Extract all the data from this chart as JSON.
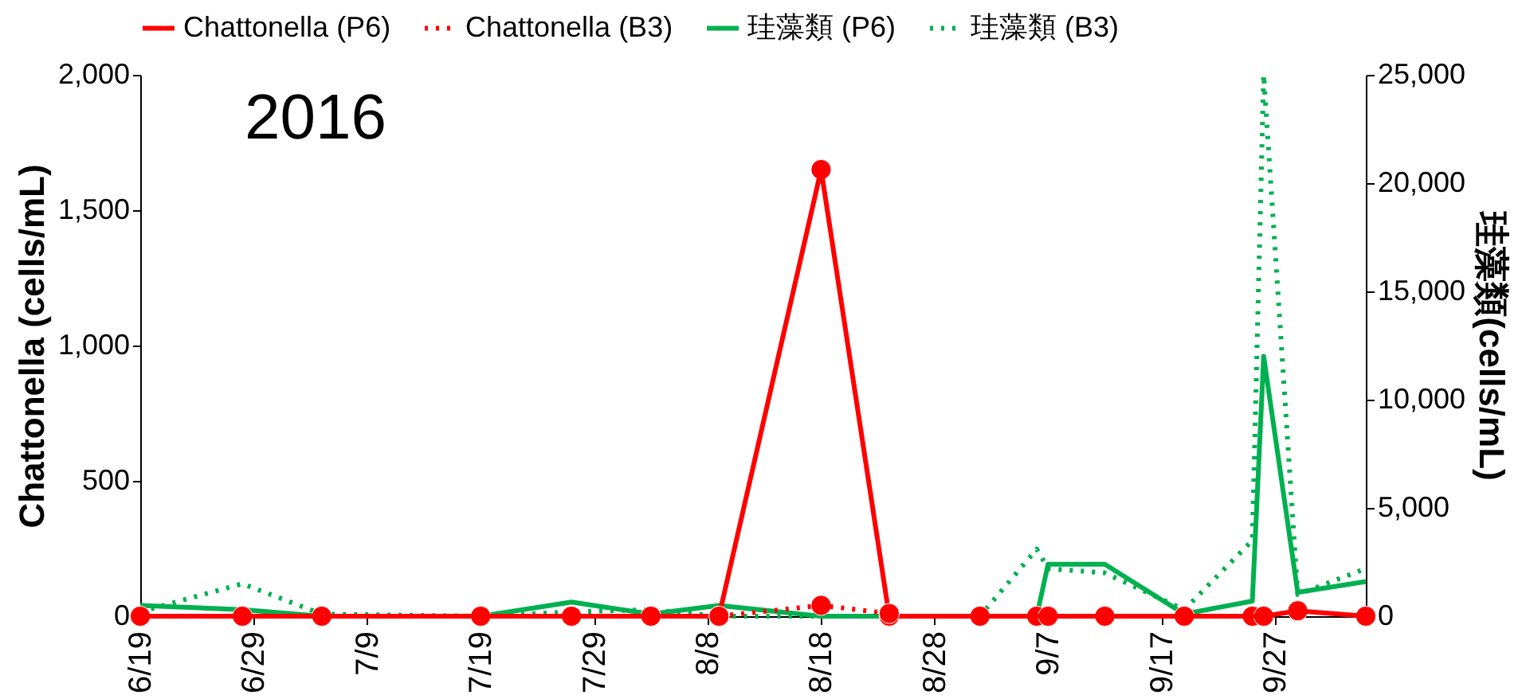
{
  "chart_data": {
    "type": "line",
    "annotations": [
      "2016"
    ],
    "ylabel": "Chattonella (cells/mL)",
    "y2label": "珪藻類(cells/mL)",
    "x": [
      "2016-06-19",
      "2016-06-28",
      "2016-07-05",
      "2016-07-19",
      "2016-07-27",
      "2016-08-03",
      "2016-08-09",
      "2016-08-18",
      "2016-08-24",
      "2016-09-01",
      "2016-09-06",
      "2016-09-07",
      "2016-09-12",
      "2016-09-19",
      "2016-09-25",
      "2016-09-26",
      "2016-09-29",
      "2016-10-05"
    ],
    "series": [
      {
        "name": "Chattonella (P6)",
        "color": "#ff0000",
        "marker": "circle",
        "line_style": "solid",
        "values": [
          0,
          0,
          0,
          0,
          0,
          0,
          0,
          1650,
          0,
          0,
          0,
          0,
          0,
          0,
          0,
          0,
          20,
          0
        ]
      },
      {
        "name": "Chattonella (B3)",
        "color": "#ff0000",
        "marker": "circle",
        "line_style": "dotted",
        "values": [
          null,
          null,
          null,
          null,
          null,
          null,
          0,
          40,
          10,
          null,
          null,
          null,
          null,
          null,
          null,
          null,
          null,
          null
        ]
      },
      {
        "name": "珪藻類 (P6)",
        "color": "#00b050",
        "marker": "none",
        "line_style": "solid",
        "axis": "y2",
        "values": [
          500,
          300,
          0,
          0,
          650,
          100,
          500,
          0,
          0,
          0,
          0,
          2400,
          2400,
          100,
          700,
          12000,
          1100,
          1600
        ]
      },
      {
        "name": "珪藻類 (B3)",
        "color": "#00b050",
        "marker": "none",
        "line_style": "dotted",
        "axis": "y2",
        "values": [
          200,
          1500,
          100,
          0,
          200,
          300,
          0,
          0,
          0,
          0,
          3100,
          2200,
          2000,
          300,
          3500,
          25000,
          1000,
          2200
        ]
      }
    ],
    "xlim": [
      "2016-06-19",
      "2016-10-05"
    ],
    "xticks": [
      {
        "value": "2016-06-19",
        "label": "6/19"
      },
      {
        "value": "2016-06-29",
        "label": "6/29"
      },
      {
        "value": "2016-07-09",
        "label": "7/9"
      },
      {
        "value": "2016-07-19",
        "label": "7/19"
      },
      {
        "value": "2016-07-29",
        "label": "7/29"
      },
      {
        "value": "2016-08-08",
        "label": "8/8"
      },
      {
        "value": "2016-08-18",
        "label": "8/18"
      },
      {
        "value": "2016-08-28",
        "label": "8/28"
      },
      {
        "value": "2016-09-07",
        "label": "9/7"
      },
      {
        "value": "2016-09-17",
        "label": "9/17"
      },
      {
        "value": "2016-09-27",
        "label": "9/27"
      }
    ],
    "ylim": [
      0,
      2000
    ],
    "yticks": [
      0,
      500,
      {
        "value": 1000,
        "label": "1,000"
      },
      {
        "value": 1500,
        "label": "1,500"
      },
      {
        "value": 2000,
        "label": "2,000"
      }
    ],
    "y2lim": [
      0,
      25000
    ],
    "y2ticks": [
      0,
      {
        "value": 5000,
        "label": "5,000"
      },
      {
        "value": 10000,
        "label": "10,000"
      },
      {
        "value": 15000,
        "label": "15,000"
      },
      {
        "value": 20000,
        "label": "20,000"
      },
      {
        "value": 25000,
        "label": "25,000"
      }
    ],
    "grid": false,
    "legend": "top"
  }
}
